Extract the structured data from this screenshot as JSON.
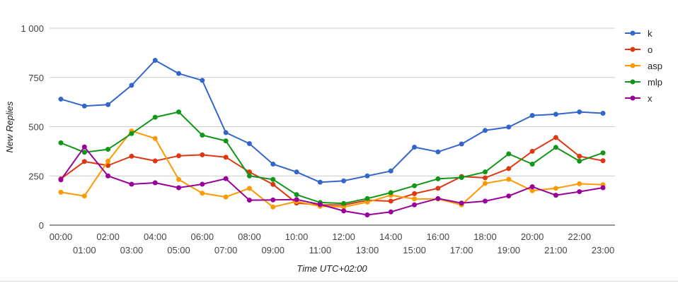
{
  "chart_data": {
    "type": "line",
    "xlabel": "Time UTC+02:00",
    "ylabel": "New Replies",
    "ylim": [
      0,
      1000
    ],
    "yticks": [
      0,
      250,
      500,
      750,
      1000
    ],
    "ytick_labels": [
      "0",
      "250",
      "500",
      "750",
      "1 000"
    ],
    "grid": true,
    "legend_position": "right",
    "categories": [
      "00:00",
      "01:00",
      "02:00",
      "03:00",
      "04:00",
      "05:00",
      "06:00",
      "07:00",
      "08:00",
      "09:00",
      "10:00",
      "11:00",
      "12:00",
      "13:00",
      "14:00",
      "15:00",
      "16:00",
      "17:00",
      "18:00",
      "19:00",
      "20:00",
      "21:00",
      "22:00",
      "23:00"
    ],
    "series": [
      {
        "name": "k",
        "color": "#3366cc",
        "values": [
          640,
          605,
          612,
          710,
          837,
          770,
          735,
          470,
          414,
          310,
          270,
          218,
          225,
          250,
          275,
          396,
          372,
          412,
          481,
          498,
          557,
          563,
          575,
          568
        ]
      },
      {
        "name": "o",
        "color": "#dc3912",
        "values": [
          235,
          323,
          303,
          350,
          326,
          352,
          357,
          345,
          270,
          207,
          112,
          103,
          102,
          126,
          122,
          160,
          187,
          247,
          240,
          287,
          375,
          445,
          350,
          327
        ]
      },
      {
        "name": "asp",
        "color": "#ff9900",
        "values": [
          167,
          148,
          325,
          478,
          440,
          232,
          162,
          143,
          187,
          92,
          120,
          96,
          92,
          117,
          152,
          133,
          133,
          103,
          212,
          233,
          175,
          187,
          210,
          205
        ]
      },
      {
        "name": "mlp",
        "color": "#109618",
        "values": [
          418,
          370,
          385,
          465,
          548,
          575,
          457,
          428,
          250,
          232,
          155,
          115,
          110,
          135,
          165,
          200,
          235,
          242,
          270,
          362,
          310,
          395,
          325,
          367
        ]
      },
      {
        "name": "x",
        "color": "#990099",
        "values": [
          230,
          397,
          250,
          208,
          215,
          190,
          208,
          236,
          127,
          128,
          130,
          105,
          72,
          52,
          67,
          103,
          135,
          112,
          122,
          148,
          195,
          152,
          170,
          190
        ]
      }
    ]
  }
}
